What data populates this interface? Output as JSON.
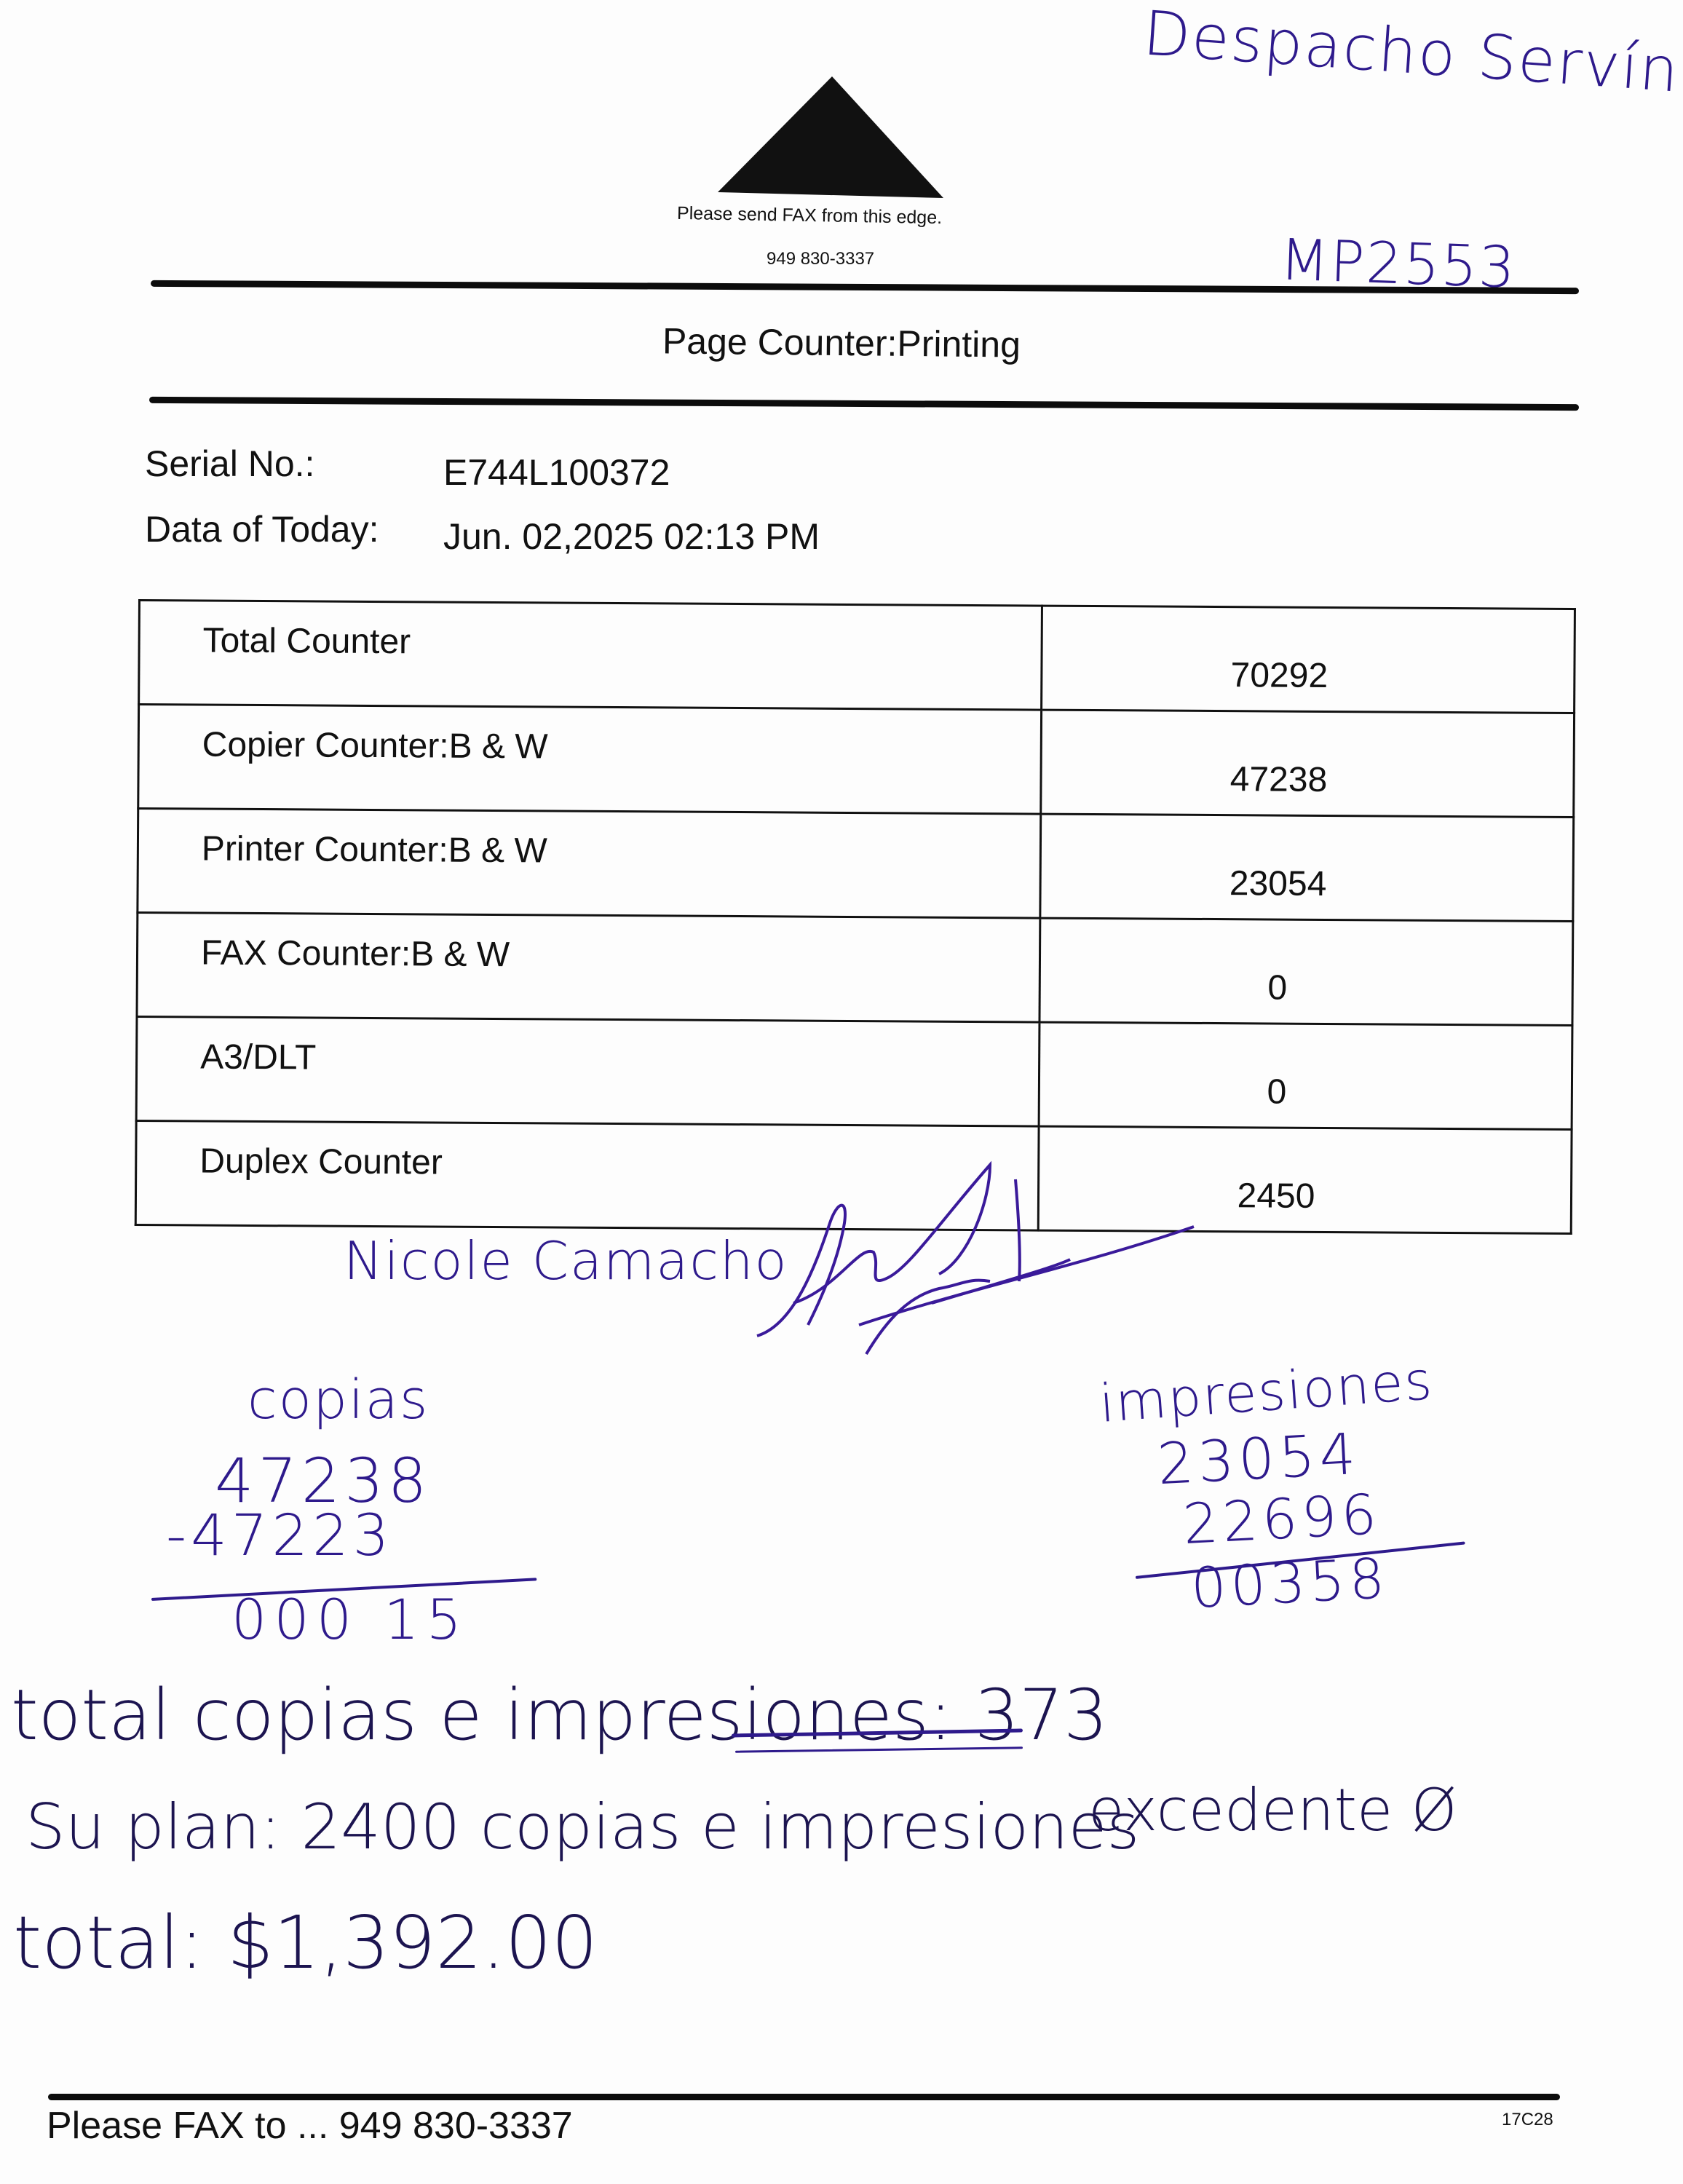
{
  "header": {
    "fax_edge_note": "Please send FAX from this edge.",
    "fax_number": "949 830-3337",
    "arrow_icon": "triangle-up-icon",
    "title": "Page Counter:Printing"
  },
  "handwritten_top": {
    "client": "Despacho Servín",
    "model": "MP2553"
  },
  "info": {
    "serial_label": "Serial No.:",
    "serial_value": "E744L100372",
    "date_label": "Data of Today:",
    "date_value": "Jun. 02,2025 02:13 PM"
  },
  "counters": [
    {
      "label": "Total Counter",
      "value": "70292"
    },
    {
      "label": "Copier Counter:B & W",
      "value": "47238"
    },
    {
      "label": "Printer Counter:B & W",
      "value": "23054"
    },
    {
      "label": "FAX Counter:B & W",
      "value": "0"
    },
    {
      "label": "A3/DLT",
      "value": "0"
    },
    {
      "label": "Duplex Counter",
      "value": "2450"
    }
  ],
  "handwritten": {
    "name": "Nicole Camacho",
    "copias": {
      "title": "copias",
      "current": "47238",
      "previous": "-47223",
      "result": "000 15"
    },
    "impresiones": {
      "title": "impresiones",
      "current": "23054",
      "previous": "22696",
      "result": "00358"
    },
    "total_line": "total copias e impresiones: 373",
    "plan_line": "Su plan: 2400 copias e impresiones",
    "excedente": "excedente Ø",
    "total_amount": "total: $1,392.00",
    "ink_color": "#2e1a8c"
  },
  "footer": {
    "fax_to": "Please FAX to ... 949 830-3337",
    "code": "17C28"
  }
}
